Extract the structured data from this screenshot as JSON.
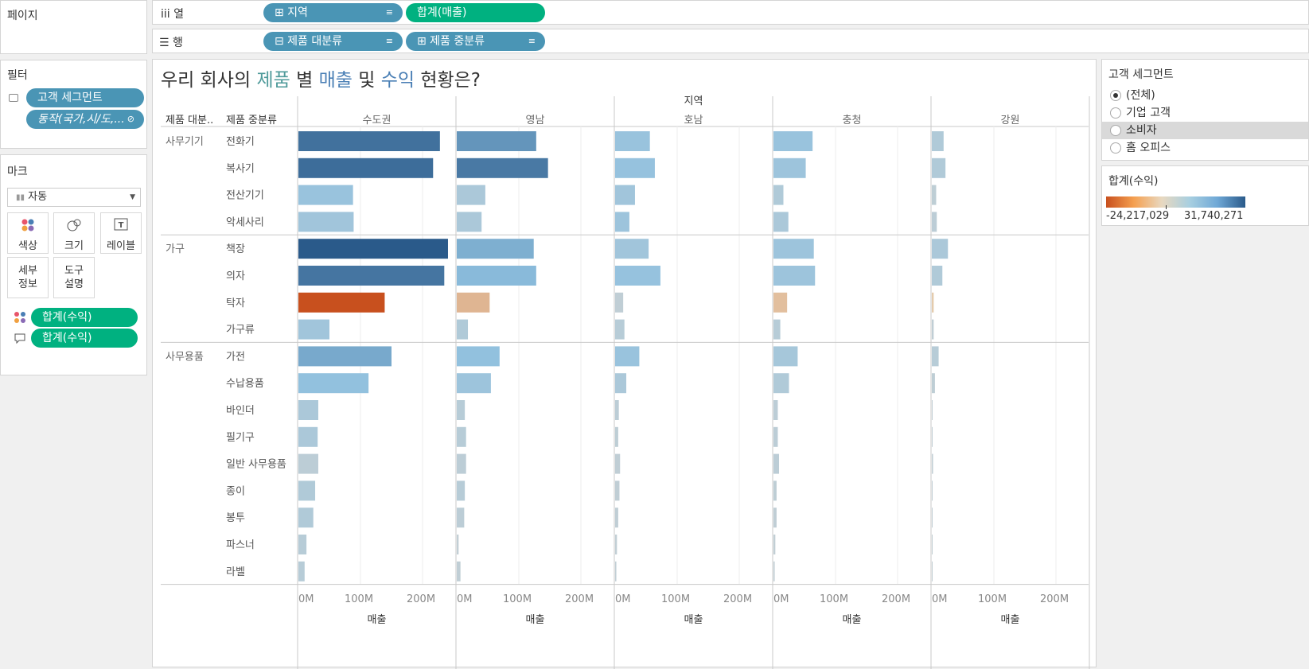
{
  "shelves": {
    "pages_label": "페이지",
    "columns_label": "열",
    "rows_label": "행",
    "columns": [
      {
        "label": "⊞ 지역",
        "kind": "dimension"
      },
      {
        "label": "합계(매출)",
        "kind": "measure"
      }
    ],
    "rows": [
      {
        "label": "⊟ 제품 대분류",
        "kind": "dimension"
      },
      {
        "label": "⊞ 제품 중분류",
        "kind": "dimension"
      }
    ]
  },
  "filters": {
    "title": "필터",
    "items": [
      "고객 세그먼트",
      "동작(국가,시/도,..."
    ]
  },
  "marks": {
    "title": "마크",
    "type": "자동",
    "buttons": [
      {
        "label": "색상",
        "icon": "color-dots-icon"
      },
      {
        "label": "크기",
        "icon": "size-circles-icon"
      },
      {
        "label": "레이블",
        "icon": "text-label-icon"
      },
      {
        "label": "세부\n정보",
        "icon": "none"
      },
      {
        "label": "도구\n설명",
        "icon": "none"
      }
    ],
    "fields": [
      {
        "label": "합계(수익)",
        "icon": "color-dots-icon"
      },
      {
        "label": "합계(수익)",
        "icon": "tooltip-icon"
      }
    ]
  },
  "title_parts": [
    {
      "text": "우리 회사의 ",
      "color": "#333333"
    },
    {
      "text": "제품",
      "color": "#4e9a9a"
    },
    {
      "text": " 별 ",
      "color": "#333333"
    },
    {
      "text": "매출",
      "color": "#4a7fb5"
    },
    {
      "text": " 및 ",
      "color": "#333333"
    },
    {
      "text": "수익",
      "color": "#4a7fb5"
    },
    {
      "text": " 현황은?",
      "color": "#333333"
    }
  ],
  "segment_filter": {
    "title": "고객 세그먼트",
    "options": [
      "(전체)",
      "기업 고객",
      "소비자",
      "홈 오피스"
    ],
    "selected": "(전체)",
    "hovered": "소비자"
  },
  "legend": {
    "title": "합계(수익)",
    "min_label": "-24,217,029",
    "max_label": "31,740,271",
    "colors": [
      "#c8501e",
      "#f5a050",
      "#e8d8c0",
      "#a8cfe0",
      "#6fa8d6",
      "#2a5a8a"
    ]
  },
  "chart_data": {
    "type": "bar",
    "orientation": "horizontal",
    "region_header": "지역",
    "category_header": "제품 대분..",
    "subcategory_header": "제품 중분류",
    "regions": [
      "수도권",
      "영남",
      "호남",
      "충청",
      "강원"
    ],
    "xlabel": "매출",
    "xlim": [
      0,
      250
    ],
    "xticks": [
      "0M",
      "100M",
      "200M"
    ],
    "xtick_values": [
      0,
      100,
      200
    ],
    "groups": [
      {
        "category": "사무기기",
        "items": [
          {
            "name": "전화기",
            "values": [
              228,
              128,
              56,
              63,
              19
            ],
            "profits": [
              26,
              18,
              7,
              7,
              2
            ]
          },
          {
            "name": "복사기",
            "values": [
              217,
              147,
              64,
              52,
              22
            ],
            "profits": [
              27,
              24,
              8,
              6,
              2
            ]
          },
          {
            "name": "전산기기",
            "values": [
              88,
              46,
              32,
              16,
              7
            ],
            "profits": [
              7,
              3,
              5,
              2,
              0.3
            ]
          },
          {
            "name": "악세사리",
            "values": [
              89,
              40,
              23,
              24,
              8
            ],
            "profits": [
              5,
              3,
              6,
              3,
              0.5
            ]
          }
        ]
      },
      {
        "category": "가구",
        "items": [
          {
            "name": "책장",
            "values": [
              241,
              124,
              54,
              65,
              26
            ],
            "profits": [
              31.7,
              13,
              5,
              6,
              3
            ]
          },
          {
            "name": "의자",
            "values": [
              235,
              128,
              73,
              67,
              17
            ],
            "profits": [
              25,
              11,
              8,
              6,
              2
            ]
          },
          {
            "name": "탁자",
            "values": [
              139,
              53,
              13,
              22,
              3
            ],
            "profits": [
              -24.2,
              -2,
              0.2,
              -1,
              -0.2
            ]
          },
          {
            "name": "가구류",
            "values": [
              50,
              18,
              15,
              11,
              3
            ],
            "profits": [
              5,
              2,
              1,
              1,
              0.2
            ]
          }
        ]
      },
      {
        "category": "사무용품",
        "items": [
          {
            "name": "가전",
            "values": [
              150,
              69,
              39,
              39,
              11
            ],
            "profits": [
              14,
              9,
              7,
              4,
              1
            ]
          },
          {
            "name": "수납용품",
            "values": [
              113,
              55,
              18,
              25,
              5
            ],
            "profits": [
              9,
              6,
              3,
              2,
              0.3
            ]
          },
          {
            "name": "바인더",
            "values": [
              32,
              13,
              6,
              7,
              1
            ],
            "profits": [
              3,
              1,
              0.5,
              0.5,
              0.1
            ]
          },
          {
            "name": "필기구",
            "values": [
              31,
              15,
              5,
              7,
              1
            ],
            "profits": [
              3,
              1,
              0.3,
              0.5,
              0.1
            ]
          },
          {
            "name": "일반 사무용품",
            "values": [
              32,
              15,
              8,
              9,
              2
            ],
            "profits": [
              0.5,
              0.5,
              0.2,
              0.5,
              0.1
            ]
          },
          {
            "name": "종이",
            "values": [
              27,
              13,
              7,
              5,
              1
            ],
            "profits": [
              2,
              1,
              0.2,
              0.3,
              0.1
            ]
          },
          {
            "name": "봉투",
            "values": [
              24,
              12,
              5,
              5,
              1
            ],
            "profits": [
              2,
              0.5,
              0.2,
              0.2,
              0.1
            ]
          },
          {
            "name": "파스너",
            "values": [
              13,
              3,
              3,
              3,
              1
            ],
            "profits": [
              1,
              0.1,
              0.1,
              0.1,
              0.05
            ]
          },
          {
            "name": "라벨",
            "values": [
              10,
              6,
              2,
              2,
              1
            ],
            "profits": [
              1,
              0.2,
              0.1,
              0.1,
              0.05
            ]
          }
        ]
      }
    ]
  }
}
